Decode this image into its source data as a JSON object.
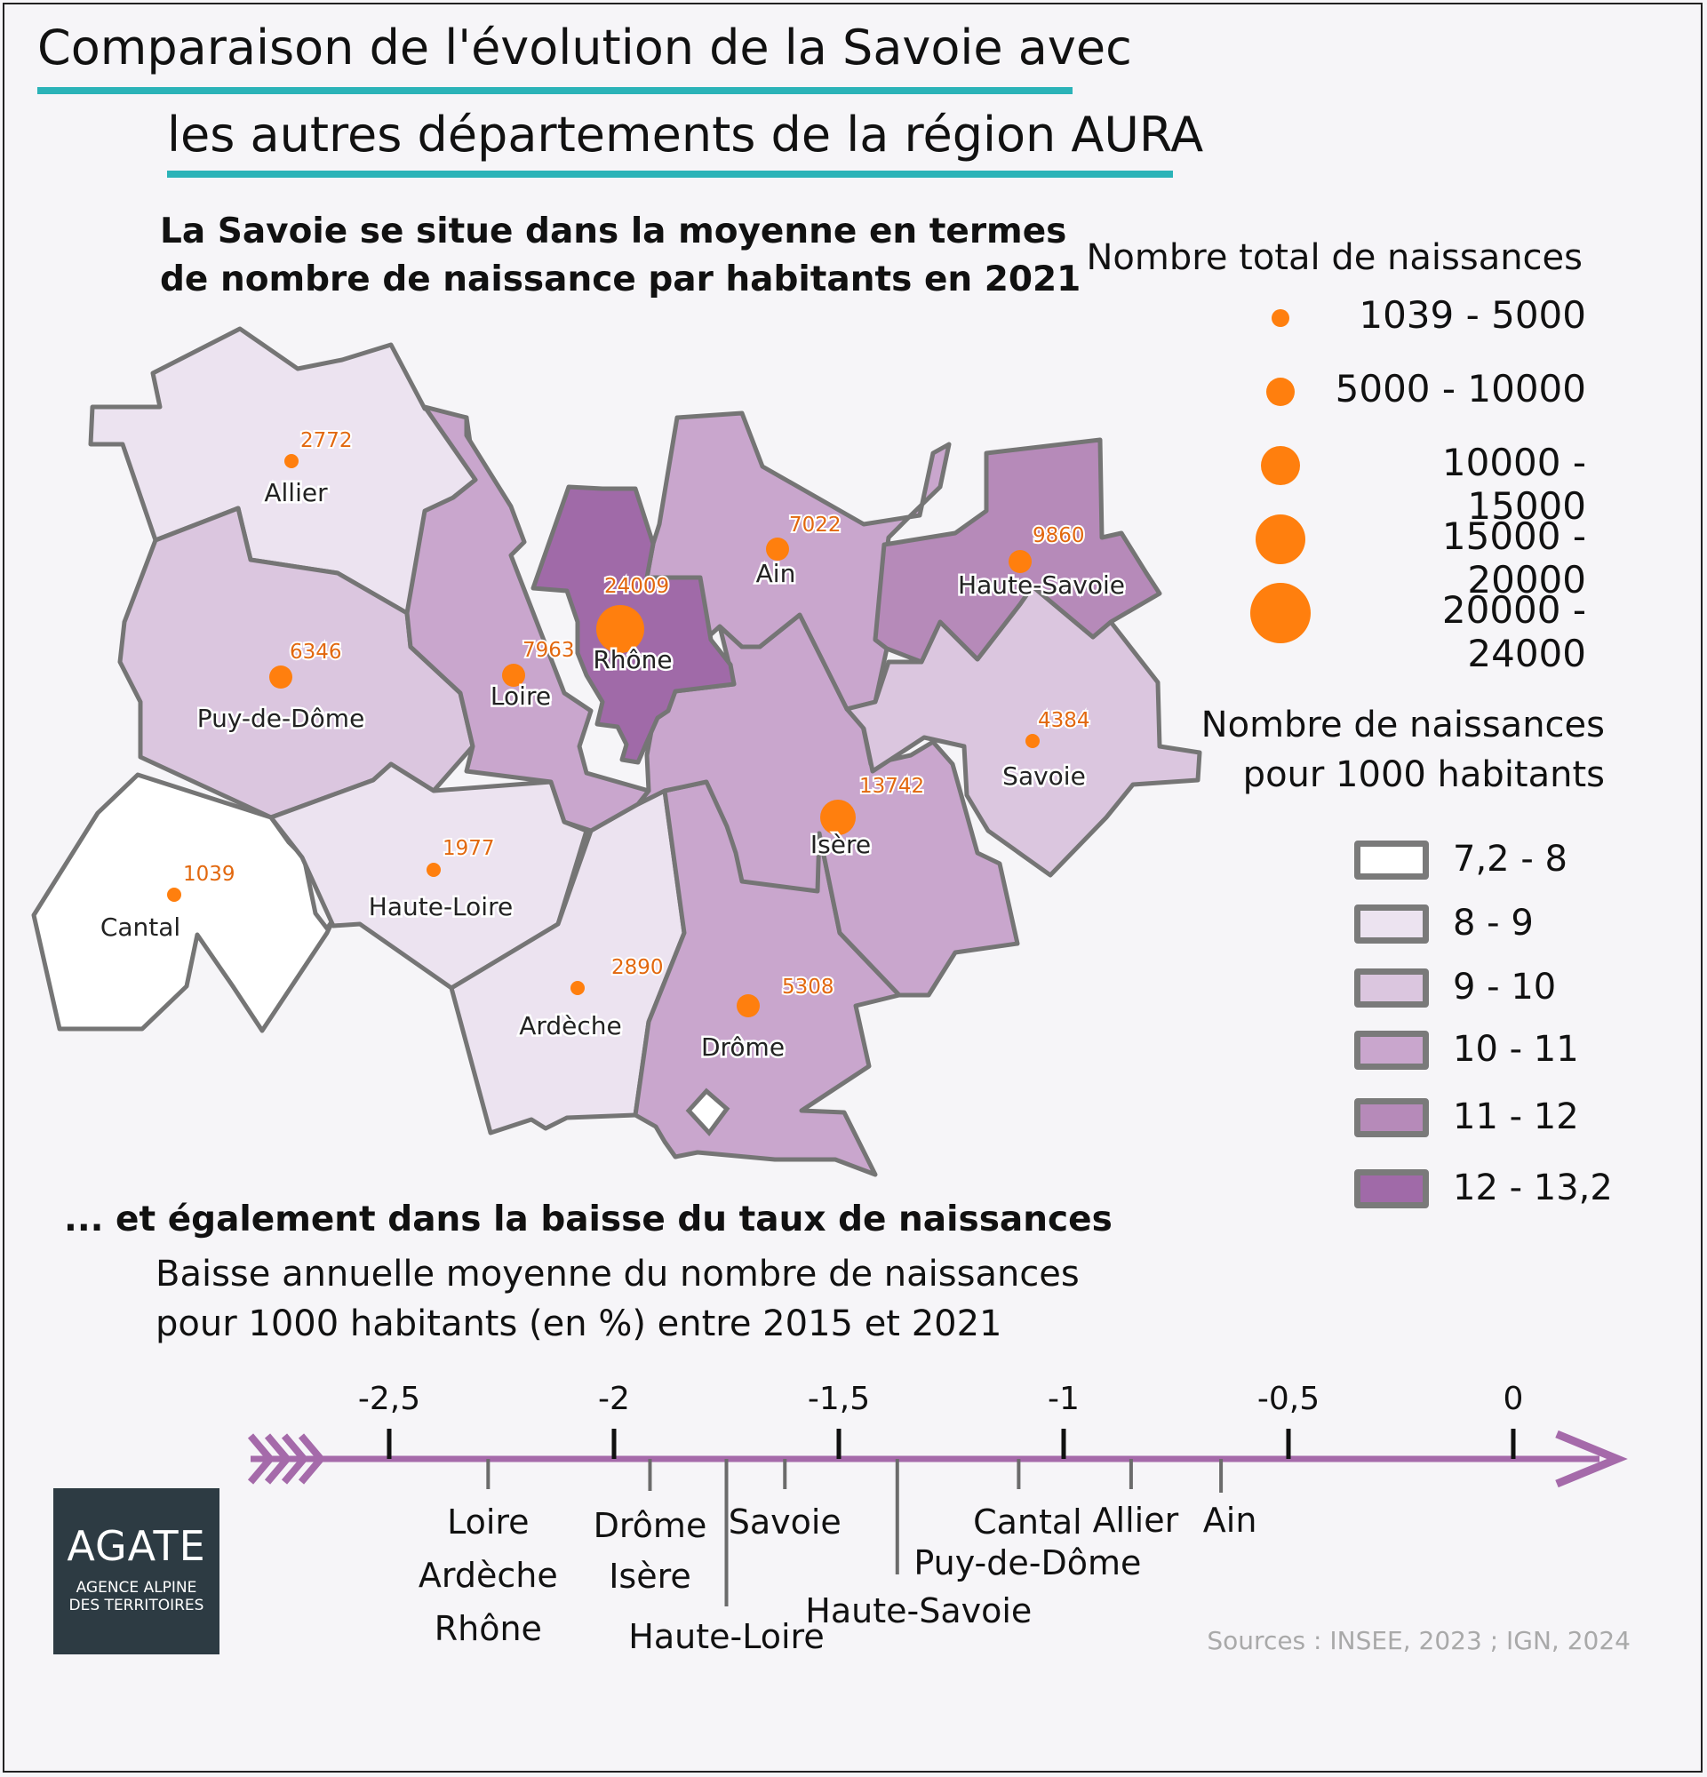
{
  "title": {
    "line1": "Comparaison de l'évolution de la Savoie avec",
    "line2": "les autres départements de la région AURA"
  },
  "map_section": {
    "heading_line1": "La Savoie se situe dans la moyenne en termes",
    "heading_line2": "de nombre de naissance par habitants en 2021"
  },
  "legend_births": {
    "title": "Nombre total de naissances",
    "items": [
      "1039 - 5000",
      "5000 - 10000",
      "10000 - 15000",
      "15000 - 20000",
      "20000 - 24000"
    ],
    "color": "#ff7f0e"
  },
  "legend_rate": {
    "title_line1": "Nombre de naissances",
    "title_line2": "pour 1000 habitants",
    "items": [
      {
        "label": "7,2 - 8",
        "color": "#ffffff"
      },
      {
        "label": "8 - 9",
        "color": "#ece3f0"
      },
      {
        "label": "9 - 10",
        "color": "#dbc6df"
      },
      {
        "label": "10 - 11",
        "color": "#c9a6cd"
      },
      {
        "label": "11 - 12",
        "color": "#b68ab9"
      },
      {
        "label": "12 - 13,2",
        "color": "#a06aa8"
      }
    ]
  },
  "departments": [
    {
      "name": "Allier",
      "births": 2772,
      "rate_class": 1
    },
    {
      "name": "Puy-de-Dôme",
      "births": 6346,
      "rate_class": 2
    },
    {
      "name": "Cantal",
      "births": 1039,
      "rate_class": 0
    },
    {
      "name": "Haute-Loire",
      "births": 1977,
      "rate_class": 1
    },
    {
      "name": "Loire",
      "births": 7963,
      "rate_class": 3
    },
    {
      "name": "Rhône",
      "births": 24009,
      "rate_class": 5
    },
    {
      "name": "Ardèche",
      "births": 2890,
      "rate_class": 1
    },
    {
      "name": "Drôme",
      "births": 5308,
      "rate_class": 3
    },
    {
      "name": "Isère",
      "births": 13742,
      "rate_class": 3
    },
    {
      "name": "Ain",
      "births": 7022,
      "rate_class": 3
    },
    {
      "name": "Savoie",
      "births": 4384,
      "rate_class": 2
    },
    {
      "name": "Haute-Savoie",
      "births": 9860,
      "rate_class": 4
    }
  ],
  "decline_section": {
    "heading": "... et également dans la baisse du taux de naissances",
    "subtitle_line1": "Baisse annuelle moyenne du nombre de naissances",
    "subtitle_line2": "pour 1000 habitants (en %) entre 2015 et 2021"
  },
  "chart_data": {
    "type": "scatter",
    "title": "Baisse annuelle moyenne du nombre de naissances pour 1000 habitants (en %) entre 2015 et 2021",
    "xlim": [
      -2.5,
      0
    ],
    "ticks": [
      -2.5,
      -2,
      -1.5,
      -1,
      -0.5,
      0
    ],
    "tick_labels": [
      "-2,5",
      "-2",
      "-1,5",
      "-1",
      "-0,5",
      "0"
    ],
    "color": "#a56aaa",
    "markers": [
      {
        "value": -2.28,
        "labels": [
          "Loire",
          "Ardèche",
          "Rhône"
        ]
      },
      {
        "value": -1.92,
        "labels": [
          "Drôme",
          "Isère"
        ]
      },
      {
        "value": -1.75,
        "labels": [
          "Haute-Loire"
        ]
      },
      {
        "value": -1.62,
        "labels": [
          "Savoie"
        ]
      },
      {
        "value": -1.37,
        "labels": [
          "Haute-Savoie"
        ]
      },
      {
        "value": -1.1,
        "labels": [
          "Cantal",
          "Puy-de-Dôme"
        ]
      },
      {
        "value": -0.85,
        "labels": [
          "Allier"
        ]
      },
      {
        "value": -0.65,
        "labels": [
          "Ain"
        ]
      }
    ]
  },
  "logo": {
    "name": "AGATE",
    "subtitle_line1": "AGENCE ALPINE",
    "subtitle_line2": "DES TERRITOIRES"
  },
  "sources": "Sources : INSEE, 2023 ; IGN, 2024"
}
